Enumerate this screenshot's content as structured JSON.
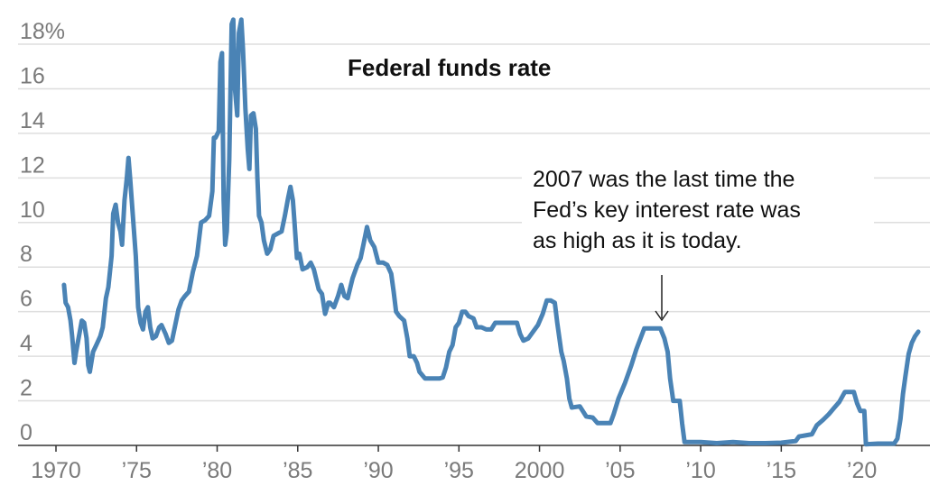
{
  "chart_data": {
    "type": "line",
    "title": "Federal funds rate",
    "annotation": [
      "2007 was the last time the",
      "Fed’s key interest rate was",
      "as high as it is today."
    ],
    "x": [
      1970.5,
      1970.6,
      1970.75,
      1970.9,
      1971.0,
      1971.15,
      1971.25,
      1971.45,
      1971.6,
      1971.75,
      1971.9,
      1972.0,
      1972.1,
      1972.3,
      1972.5,
      1972.75,
      1972.9,
      1973.1,
      1973.25,
      1973.45,
      1973.55,
      1973.7,
      1973.85,
      1974.0,
      1974.1,
      1974.25,
      1974.4,
      1974.5,
      1974.6,
      1974.8,
      1974.95,
      1975.1,
      1975.25,
      1975.4,
      1975.55,
      1975.7,
      1975.85,
      1976.0,
      1976.2,
      1976.4,
      1976.55,
      1976.8,
      1977.0,
      1977.2,
      1977.4,
      1977.6,
      1977.8,
      1978.0,
      1978.25,
      1978.5,
      1978.75,
      1979.0,
      1979.25,
      1979.5,
      1979.7,
      1979.8,
      1979.9,
      1980.1,
      1980.2,
      1980.3,
      1980.4,
      1980.5,
      1980.6,
      1980.75,
      1980.9,
      1981.0,
      1981.1,
      1981.25,
      1981.35,
      1981.5,
      1981.6,
      1981.75,
      1981.9,
      1982.0,
      1982.1,
      1982.25,
      1982.4,
      1982.5,
      1982.6,
      1982.75,
      1982.9,
      1983.1,
      1983.3,
      1983.5,
      1983.75,
      1984.0,
      1984.2,
      1984.4,
      1984.55,
      1984.7,
      1984.8,
      1984.95,
      1985.1,
      1985.3,
      1985.6,
      1985.8,
      1986.0,
      1986.3,
      1986.5,
      1986.7,
      1986.9,
      1987.0,
      1987.25,
      1987.5,
      1987.7,
      1987.9,
      1988.1,
      1988.4,
      1988.7,
      1988.9,
      1989.1,
      1989.3,
      1989.5,
      1989.75,
      1990.0,
      1990.3,
      1990.55,
      1990.8,
      1990.95,
      1991.1,
      1991.3,
      1991.6,
      1991.8,
      1991.95,
      1992.2,
      1992.4,
      1992.55,
      1992.9,
      1993.2,
      1993.5,
      1993.8,
      1994.0,
      1994.2,
      1994.4,
      1994.6,
      1994.8,
      1995.0,
      1995.2,
      1995.4,
      1995.6,
      1995.9,
      1996.1,
      1996.4,
      1996.7,
      1997.0,
      1997.25,
      1997.6,
      1998.0,
      1998.3,
      1998.6,
      1998.8,
      1999.0,
      1999.3,
      1999.6,
      1999.9,
      2000.2,
      2000.45,
      2000.7,
      2000.95,
      2001.1,
      2001.35,
      2001.5,
      2001.7,
      2001.85,
      2002.0,
      2002.5,
      2002.9,
      2003.3,
      2003.6,
      2004.0,
      2004.4,
      2004.6,
      2004.9,
      2005.3,
      2005.7,
      2006.0,
      2006.5,
      2007.0,
      2007.5,
      2007.75,
      2007.95,
      2008.1,
      2008.3,
      2008.7,
      2008.85,
      2009.0,
      2010.0,
      2011.0,
      2012.0,
      2013.0,
      2014.0,
      2015.0,
      2015.9,
      2016.1,
      2016.9,
      2017.2,
      2017.6,
      2017.95,
      2018.3,
      2018.6,
      2018.95,
      2019.5,
      2019.7,
      2019.9,
      2020.15,
      2020.25,
      2021.0,
      2022.0,
      2022.2,
      2022.4,
      2022.55,
      2022.7,
      2022.9,
      2023.1,
      2023.3,
      2023.5
    ],
    "series": [
      {
        "name": "Federal funds rate",
        "color": "#4a83b5",
        "values": [
          7.2,
          6.4,
          6.2,
          5.6,
          4.9,
          3.7,
          4.2,
          5.0,
          5.6,
          5.5,
          4.8,
          3.6,
          3.3,
          4.2,
          4.5,
          4.9,
          5.3,
          6.6,
          7.1,
          8.5,
          10.4,
          10.8,
          10.0,
          9.6,
          9.0,
          11.0,
          12.0,
          12.9,
          12.0,
          10.0,
          8.5,
          6.2,
          5.5,
          5.2,
          6.0,
          6.2,
          5.3,
          4.8,
          4.9,
          5.3,
          5.4,
          5.0,
          4.6,
          4.7,
          5.4,
          6.1,
          6.5,
          6.7,
          6.9,
          7.8,
          8.5,
          10.0,
          10.1,
          10.3,
          11.4,
          13.8,
          13.8,
          14.1,
          17.2,
          17.6,
          11.0,
          9.0,
          9.6,
          12.8,
          18.9,
          19.1,
          16.0,
          14.8,
          18.5,
          19.1,
          17.8,
          15.1,
          13.3,
          12.4,
          14.8,
          14.9,
          14.2,
          12.0,
          10.3,
          10.0,
          9.2,
          8.6,
          8.8,
          9.4,
          9.5,
          9.6,
          10.3,
          11.1,
          11.6,
          11.0,
          10.0,
          8.4,
          8.6,
          7.9,
          8.0,
          8.2,
          7.9,
          7.0,
          6.8,
          5.9,
          6.4,
          6.4,
          6.2,
          6.7,
          7.2,
          6.7,
          6.6,
          7.5,
          8.1,
          8.4,
          9.1,
          9.8,
          9.2,
          8.9,
          8.2,
          8.2,
          8.1,
          7.7,
          6.9,
          6.0,
          5.8,
          5.6,
          4.8,
          4.0,
          4.0,
          3.7,
          3.3,
          3.0,
          3.0,
          3.0,
          3.0,
          3.05,
          3.5,
          4.2,
          4.5,
          5.3,
          5.5,
          6.0,
          6.0,
          5.8,
          5.7,
          5.3,
          5.3,
          5.2,
          5.2,
          5.5,
          5.5,
          5.5,
          5.5,
          5.5,
          5.0,
          4.7,
          4.8,
          5.1,
          5.4,
          5.9,
          6.5,
          6.5,
          6.4,
          5.5,
          4.2,
          3.8,
          3.0,
          2.1,
          1.7,
          1.75,
          1.3,
          1.25,
          1.0,
          1.0,
          1.0,
          1.4,
          2.1,
          2.8,
          3.6,
          4.3,
          5.25,
          5.25,
          5.25,
          4.8,
          4.2,
          3.0,
          2.0,
          2.0,
          1.0,
          0.15,
          0.15,
          0.1,
          0.15,
          0.1,
          0.1,
          0.12,
          0.2,
          0.4,
          0.5,
          0.9,
          1.15,
          1.4,
          1.7,
          1.95,
          2.4,
          2.4,
          1.9,
          1.55,
          1.55,
          0.05,
          0.08,
          0.08,
          0.3,
          1.2,
          2.3,
          3.1,
          4.1,
          4.6,
          4.9,
          5.1
        ]
      }
    ],
    "xlim": [
      1970,
      2024
    ],
    "xticks": [
      1970,
      {
        "value": 1975,
        "label": "’75"
      },
      {
        "value": 1980,
        "label": "’80"
      },
      {
        "value": 1985,
        "label": "’85"
      },
      {
        "value": 1990,
        "label": "’90"
      },
      {
        "value": 1995,
        "label": "’95"
      },
      2000,
      {
        "value": 2005,
        "label": "’05"
      },
      {
        "value": 2010,
        "label": "’10"
      },
      {
        "value": 2015,
        "label": "’15"
      },
      {
        "value": 2020,
        "label": "’20"
      }
    ],
    "ylim": [
      0,
      18
    ],
    "yticks": [
      0,
      2,
      4,
      6,
      8,
      10,
      12,
      14,
      16,
      {
        "value": 18,
        "label": "18%"
      }
    ],
    "grid": true
  }
}
